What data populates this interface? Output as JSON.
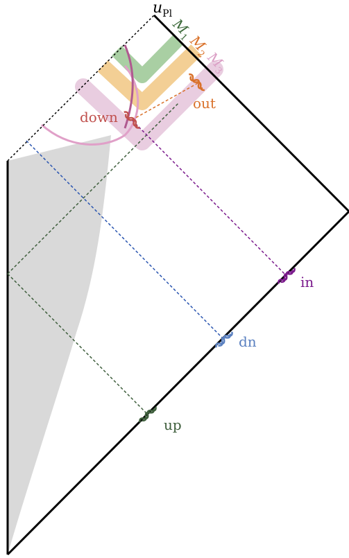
{
  "labels": {
    "u_pl_main": "u",
    "u_pl_sub": "Pl",
    "m1_main": "M",
    "m1_sub": "1",
    "m2_main": "M",
    "m2_sub": "2",
    "m3_main": "M",
    "m3_sub": "3",
    "out": "out",
    "down": "down",
    "in": "in",
    "dn": "dn",
    "up": "up"
  },
  "colors": {
    "boundary": "#000000",
    "shade": "#d9d9d9",
    "m1_band": "#a9cfa3",
    "m2_band": "#f3cf95",
    "m3_band": "#e9cde0",
    "m1_text": "#3e6b3c",
    "m2_text": "#d9712a",
    "m3_text": "#dba0c6",
    "out": "#d9712a",
    "down": "#c0504d",
    "in": "#7b1a8c",
    "dn": "#5a80c0",
    "up": "#3e5e3c",
    "dn_line": "#2a55b0",
    "arc_outer": "#e0a0c8",
    "arc_inner": "#b05a90"
  },
  "icons": {
    "wave_packet": "wave-packet-icon"
  }
}
